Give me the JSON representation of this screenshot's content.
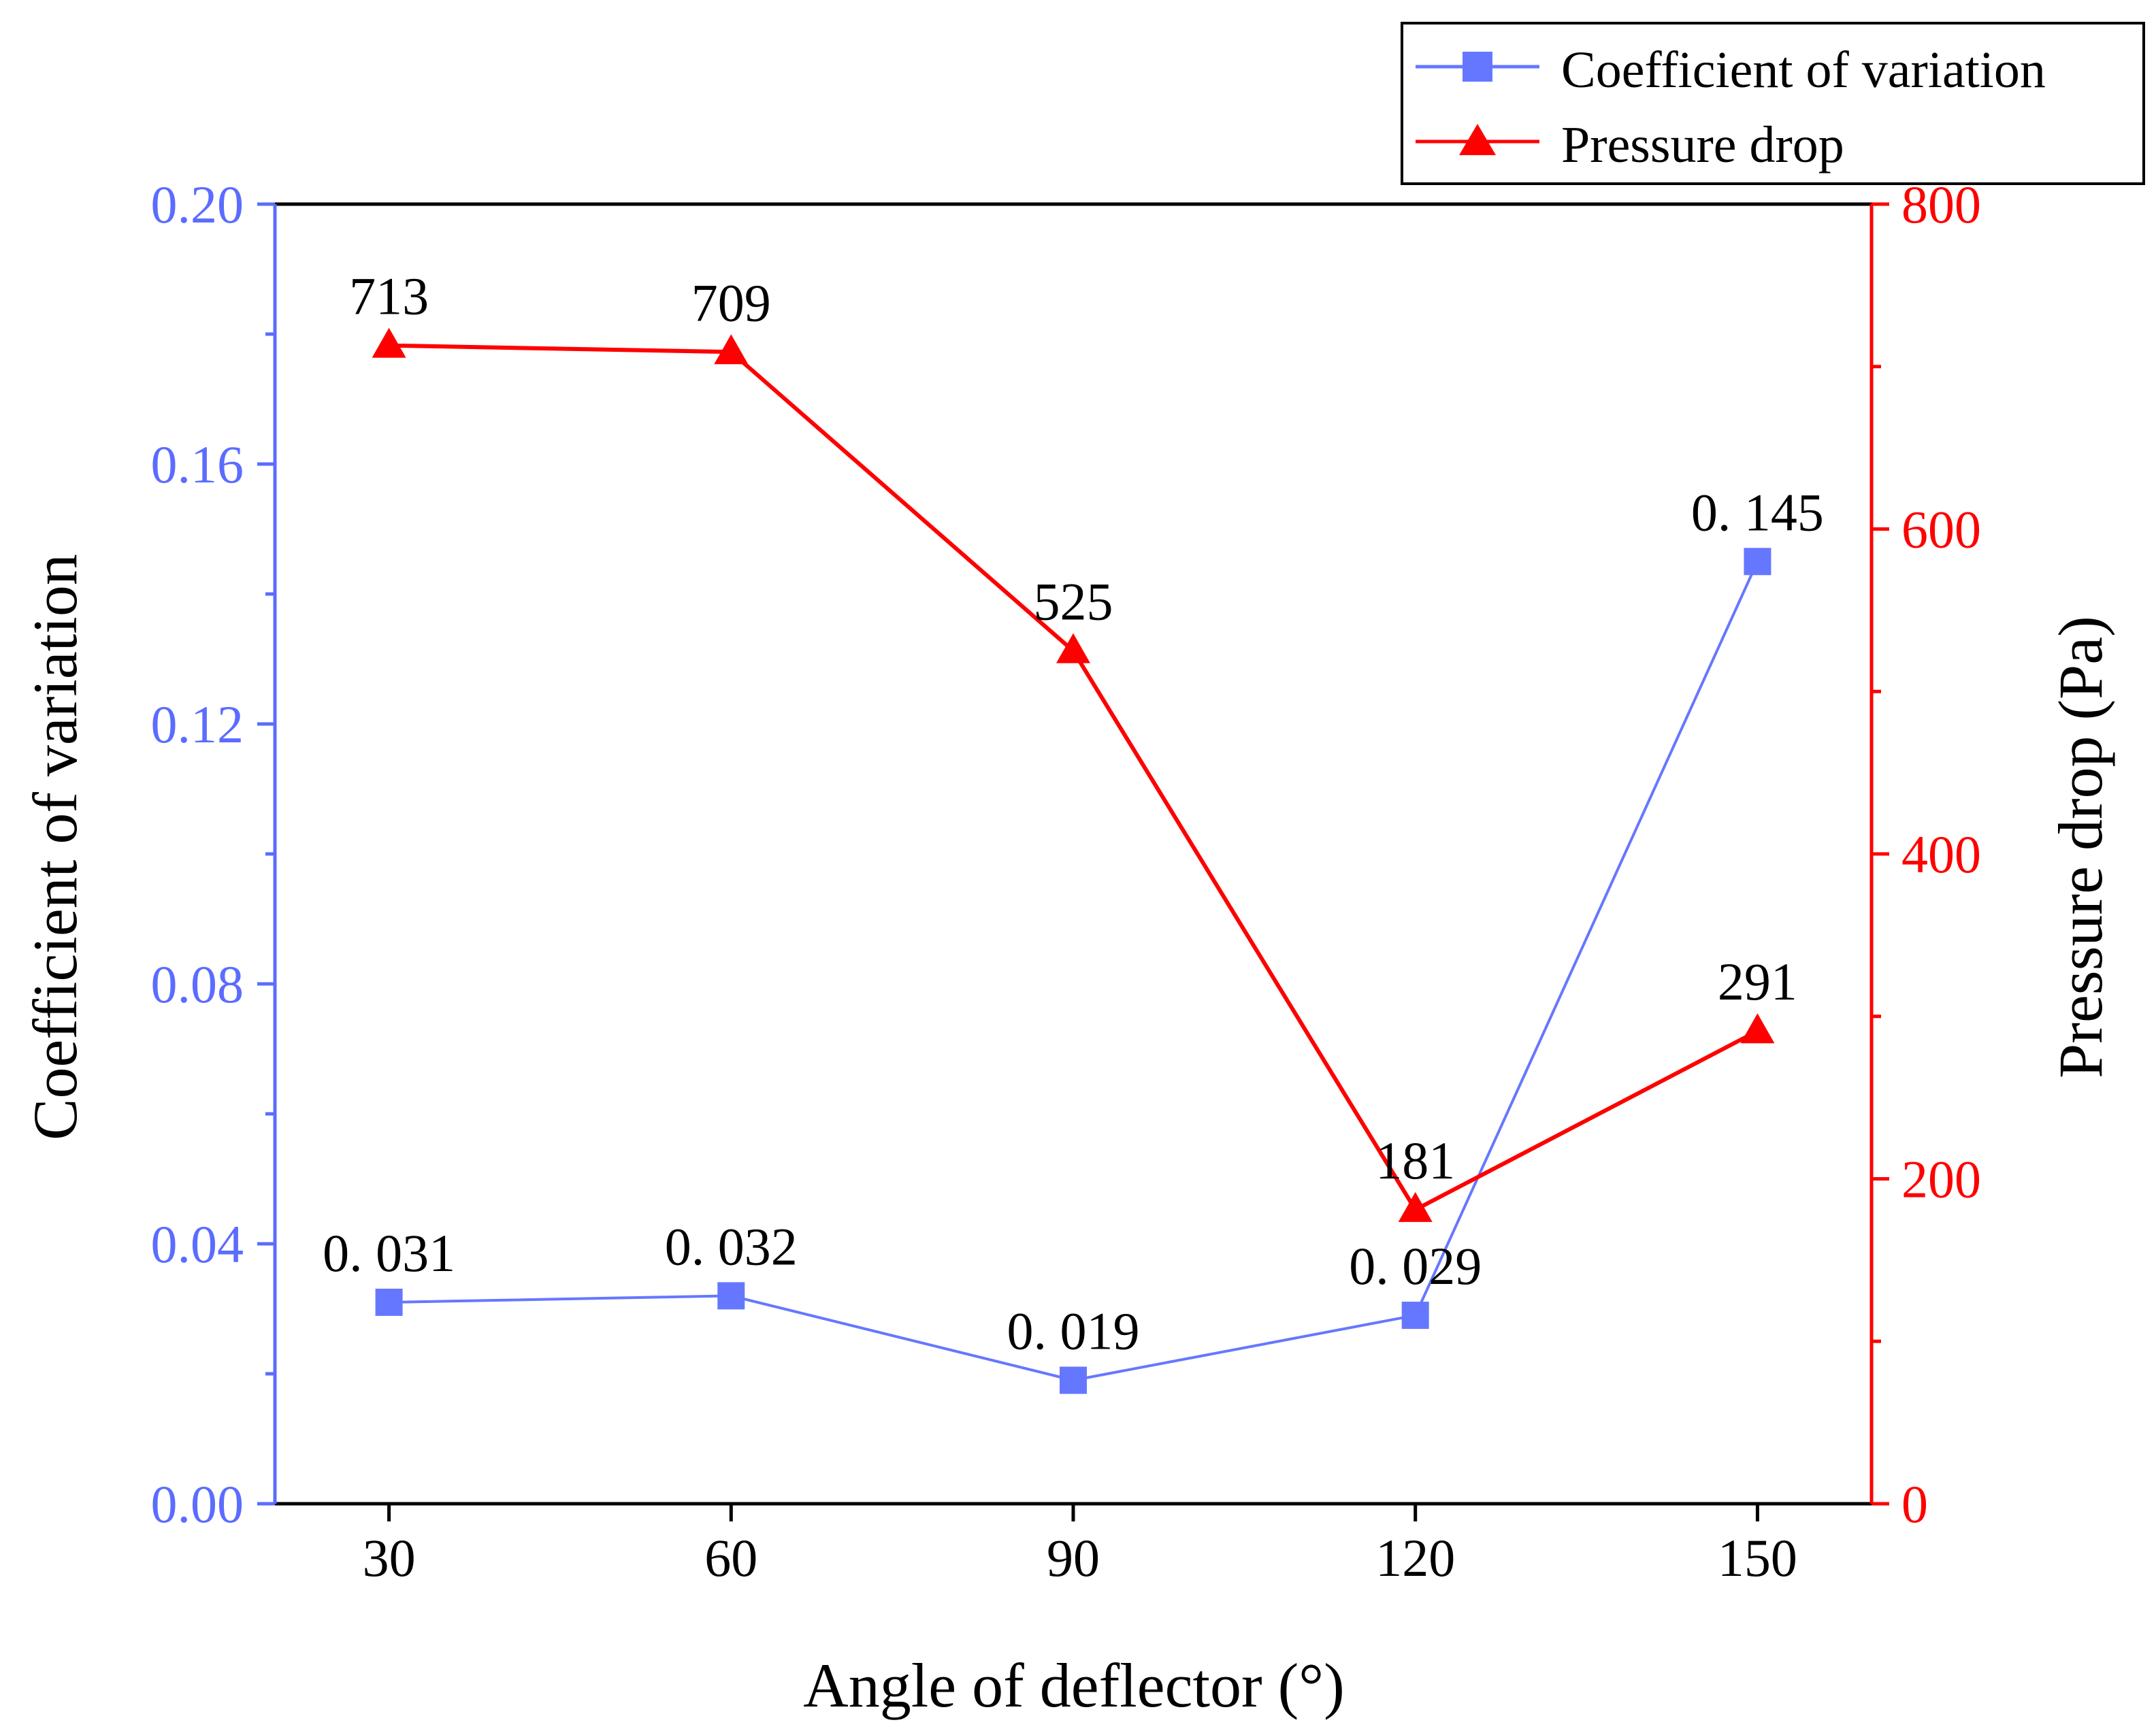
{
  "colors": {
    "left_axis": "#5b6cff",
    "right_axis": "#ff0000",
    "cov_series": "#6677ff",
    "pd_series": "#ff0000",
    "axis_black": "#000000"
  },
  "chart_data": {
    "type": "line",
    "title": "",
    "xlabel": "Angle of deflector (°)",
    "ylabel_left": "Coefficient of variation",
    "ylabel_right": "Pressure drop (Pa)",
    "x": [
      30,
      60,
      90,
      120,
      150
    ],
    "x_ticks": [
      "30",
      "60",
      "90",
      "120",
      "150"
    ],
    "xlim": [
      20,
      160
    ],
    "ylim_left": [
      0,
      0.2
    ],
    "ylim_right": [
      0,
      800
    ],
    "left_ticks": [
      "0.00",
      "0.04",
      "0.08",
      "0.12",
      "0.16",
      "0.20"
    ],
    "left_tick_values": [
      0,
      0.04,
      0.08,
      0.12,
      0.16,
      0.2
    ],
    "right_ticks": [
      "0",
      "200",
      "400",
      "600",
      "800"
    ],
    "right_tick_values": [
      0,
      200,
      400,
      600,
      800
    ],
    "legend_position": "top-right",
    "series": [
      {
        "name": "Coefficient of variation",
        "axis": "left",
        "marker": "square",
        "values": [
          0.031,
          0.032,
          0.019,
          0.029,
          0.145
        ],
        "labels": [
          "0. 031",
          "0. 032",
          "0. 019",
          "0. 029",
          "0. 145"
        ]
      },
      {
        "name": "Pressure drop",
        "axis": "right",
        "marker": "triangle",
        "values": [
          713,
          709,
          525,
          181,
          291
        ],
        "labels": [
          "713",
          "709",
          "525",
          "181",
          "291"
        ]
      }
    ]
  }
}
